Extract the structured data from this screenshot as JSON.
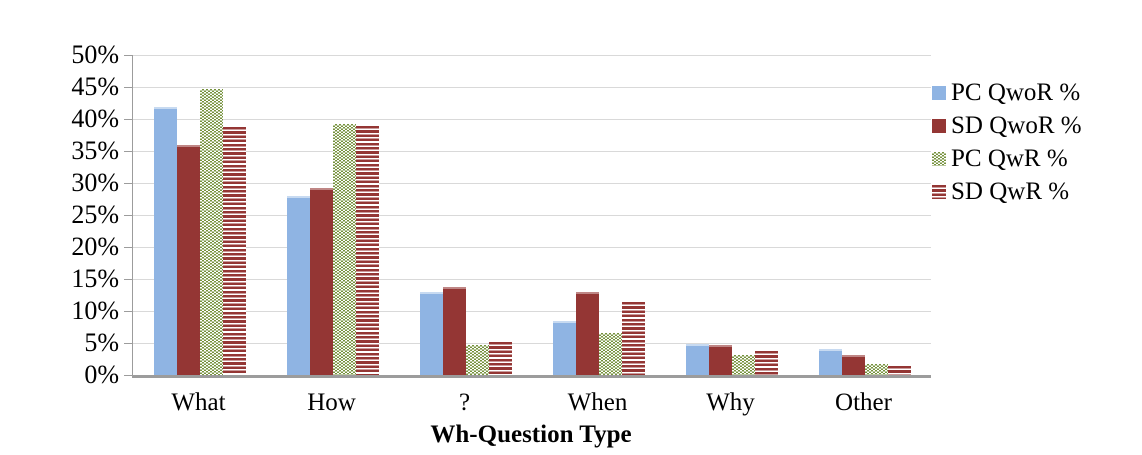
{
  "chart_data": {
    "type": "bar",
    "title": "",
    "xlabel": "Wh-Question Type",
    "ylabel": "",
    "categories": [
      "What",
      "How",
      "?",
      "When",
      "Why",
      "Other"
    ],
    "series": [
      {
        "name": "PC QwoR %",
        "style": "solid-blue",
        "values": [
          41.9,
          27.9,
          12.9,
          8.5,
          4.9,
          4.1
        ]
      },
      {
        "name": "SD QwoR %",
        "style": "solid-red",
        "values": [
          35.9,
          29.3,
          13.7,
          13.0,
          4.7,
          3.1
        ]
      },
      {
        "name": "PC QwR %",
        "style": "dots-green",
        "values": [
          44.7,
          39.2,
          4.7,
          6.5,
          3.1,
          1.7
        ]
      },
      {
        "name": "SD QwR %",
        "style": "stripes-red",
        "values": [
          38.8,
          38.9,
          5.2,
          11.4,
          3.7,
          1.4
        ]
      }
    ],
    "ylim": [
      0,
      50
    ],
    "ytick_step": 5,
    "ytick_labels": [
      "0%",
      "5%",
      "10%",
      "15%",
      "20%",
      "25%",
      "30%",
      "35%",
      "40%",
      "45%",
      "50%"
    ],
    "grid": "horizontal-light",
    "legend_position": "right-outside"
  },
  "colors": {
    "bar-blue": "#8FB4E3",
    "bar-red": "#943634",
    "bar-green": "#76923C",
    "gridline": "#D9D9D9",
    "axis-line": "#9C9C9C",
    "text": "#000000"
  }
}
